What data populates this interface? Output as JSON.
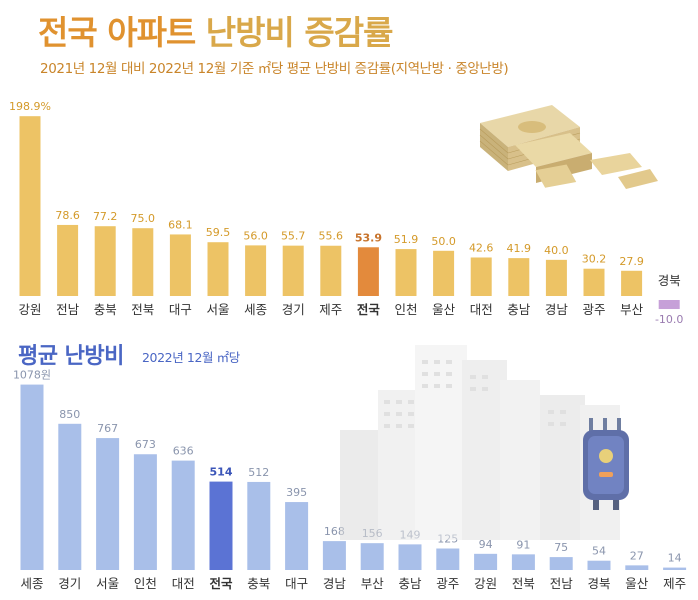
{
  "title": {
    "part1": "전국 아파트",
    "part2": "난방비 증감률",
    "subtitle": "2021년 12월 대비 2022년 12월 기준 ㎡당 평균 난방비 증감률(지역난방 · 중앙난방)",
    "color1": "#e0922f",
    "color2": "#d9a84a"
  },
  "section2": {
    "title": "평균 난방비",
    "subtitle": "2022년 12월 ㎡당"
  },
  "colors": {
    "bar1": "#edc365",
    "bar1_highlight": "#e38a3c",
    "bar1_negative": "#c6a0d8",
    "bar2": "#a9bfe9",
    "bar2_highlight": "#5b73d4",
    "label1": "#d49a2a",
    "label2": "#8a95ad",
    "label2_highlight": "#3b55b8",
    "axis_label": "#333333"
  },
  "illustrations": [
    "money-stacks-icon",
    "apartment-buildings",
    "water-heater-icon"
  ],
  "chart_data": [
    {
      "type": "bar",
      "title": "전국 아파트 난방비 증감률",
      "subtitle": "2021년 12월 대비 2022년 12월 기준 ㎡당 평균 난방비 증감률(지역난방 · 중앙난방)",
      "categories": [
        "강원",
        "전남",
        "충북",
        "전북",
        "대구",
        "서울",
        "세종",
        "경기",
        "제주",
        "전국",
        "인천",
        "울산",
        "대전",
        "충남",
        "경남",
        "광주",
        "부산",
        "경북"
      ],
      "values": [
        198.9,
        78.6,
        77.2,
        75.0,
        68.1,
        59.5,
        56.0,
        55.7,
        55.6,
        53.9,
        51.9,
        50.0,
        42.6,
        41.9,
        40.0,
        30.2,
        27.9,
        -10.0
      ],
      "value_labels": [
        "198.9%",
        "78.6",
        "77.2",
        "75.0",
        "68.1",
        "59.5",
        "56.0",
        "55.7",
        "55.6",
        "53.9",
        "51.9",
        "50.0",
        "42.6",
        "41.9",
        "40.0",
        "30.2",
        "27.9",
        "-10.0"
      ],
      "highlight": "전국",
      "unit": "%"
    },
    {
      "type": "bar",
      "title": "평균 난방비",
      "subtitle": "2022년 12월 ㎡당",
      "categories": [
        "세종",
        "경기",
        "서울",
        "인천",
        "대전",
        "전국",
        "충북",
        "대구",
        "경남",
        "부산",
        "충남",
        "광주",
        "강원",
        "전북",
        "전남",
        "경북",
        "울산",
        "제주"
      ],
      "values": [
        1078,
        850,
        767,
        673,
        636,
        514,
        512,
        395,
        168,
        156,
        149,
        125,
        94,
        91,
        75,
        54,
        27,
        14
      ],
      "value_labels": [
        "1078원",
        "850",
        "767",
        "673",
        "636",
        "514",
        "512",
        "395",
        "168",
        "156",
        "149",
        "125",
        "94",
        "91",
        "75",
        "54",
        "27",
        "14"
      ],
      "highlight": "전국",
      "unit": "원"
    }
  ]
}
